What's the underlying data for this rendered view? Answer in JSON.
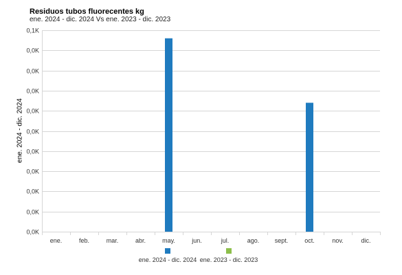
{
  "chart_data": {
    "type": "bar",
    "title": "Residuos tubos fluorecentes kg",
    "subtitle": "ene. 2024 - dic. 2024 Vs ene. 2023 - dic. 2023",
    "ylabel": "ene. 2024 - dic. 2024",
    "xlabel": "",
    "categories": [
      "ene.",
      "feb.",
      "mar.",
      "abr.",
      "may.",
      "jun.",
      "jul.",
      "ago.",
      "sept.",
      "oct.",
      "nov.",
      "dic."
    ],
    "ylim": [
      0,
      0.1
    ],
    "yticks": [
      0.1,
      0.09,
      0.08,
      0.07,
      0.06,
      0.05,
      0.04,
      0.03,
      0.02,
      0.01,
      0
    ],
    "ytick_labels": [
      "0,1K",
      "0,0K",
      "0,0K",
      "0,0K",
      "0,0K",
      "0,0K",
      "0,0K",
      "0,0K",
      "0,0K",
      "0,0K",
      "0,0K"
    ],
    "grid": true,
    "legend_position": "bottom",
    "series": [
      {
        "name": "ene. 2024 - dic. 2024",
        "color": "#1f7bbf",
        "values": [
          0,
          0,
          0,
          0,
          0.096,
          0,
          0,
          0,
          0,
          0.064,
          0,
          0
        ]
      },
      {
        "name": "ene. 2023 - dic. 2023",
        "color": "#8dbf4b",
        "values": [
          0,
          0,
          0,
          0,
          0,
          0,
          0,
          0,
          0,
          0,
          0,
          0
        ]
      }
    ]
  }
}
